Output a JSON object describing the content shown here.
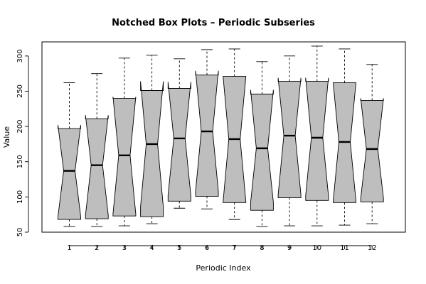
{
  "chart_data": {
    "type": "boxplot",
    "title": "Notched Box Plots – Periodic Subseries",
    "xlabel": "Periodic Index",
    "ylabel": "Value",
    "ylim": [
      50,
      320
    ],
    "yticks": [
      50,
      100,
      150,
      200,
      250,
      300
    ],
    "categories": [
      "1",
      "2",
      "3",
      "4",
      "5",
      "6",
      "7",
      "8",
      "9",
      "10",
      "11",
      "12"
    ],
    "boxes": [
      {
        "min": 58,
        "q1": 68,
        "median": 137,
        "q3": 197,
        "max": 262,
        "notch_lo": 72,
        "notch_hi": 202
      },
      {
        "min": 58,
        "q1": 69,
        "median": 145,
        "q3": 211,
        "max": 275,
        "notch_lo": 74,
        "notch_hi": 216
      },
      {
        "min": 59,
        "q1": 73,
        "median": 159,
        "q3": 240,
        "max": 297,
        "notch_lo": 76,
        "notch_hi": 242
      },
      {
        "min": 62,
        "q1": 72,
        "median": 175,
        "q3": 251,
        "max": 301,
        "notch_lo": 86,
        "notch_hi": 264
      },
      {
        "min": 84,
        "q1": 94,
        "median": 183,
        "q3": 254,
        "max": 296,
        "notch_lo": 102,
        "notch_hi": 263
      },
      {
        "min": 83,
        "q1": 101,
        "median": 193,
        "q3": 273,
        "max": 309,
        "notch_lo": 108,
        "notch_hi": 279
      },
      {
        "min": 68,
        "q1": 92,
        "median": 182,
        "q3": 271,
        "max": 310,
        "notch_lo": 93,
        "notch_hi": 271
      },
      {
        "min": 58,
        "q1": 81,
        "median": 169,
        "q3": 246,
        "max": 292,
        "notch_lo": 92,
        "notch_hi": 252
      },
      {
        "min": 59,
        "q1": 99,
        "median": 187,
        "q3": 264,
        "max": 300,
        "notch_lo": 103,
        "notch_hi": 269
      },
      {
        "min": 59,
        "q1": 95,
        "median": 184,
        "q3": 264,
        "max": 314,
        "notch_lo": 102,
        "notch_hi": 269
      },
      {
        "min": 60,
        "q1": 92,
        "median": 178,
        "q3": 262,
        "max": 310,
        "notch_lo": 94,
        "notch_hi": 262
      },
      {
        "min": 62,
        "q1": 93,
        "median": 168,
        "q3": 237,
        "max": 288,
        "notch_lo": 98,
        "notch_hi": 240
      }
    ],
    "box_fill": "#bebebe",
    "grid": false,
    "legend": "none"
  }
}
